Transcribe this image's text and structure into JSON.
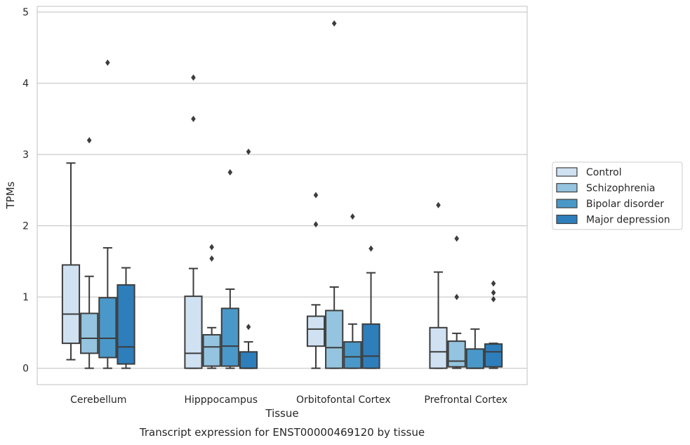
{
  "caption": "Transcript expression for ENST00000469120 by tissue",
  "chart_data": {
    "type": "box",
    "xlabel": "Tissue",
    "ylabel": "TPMs",
    "ylim": [
      -0.23,
      5.08
    ],
    "yticks": [
      0,
      1,
      2,
      3,
      4,
      5
    ],
    "grid": "horizontal",
    "legend_position": "right",
    "categories": [
      "Cerebellum",
      "Hipppocampus",
      "Orbitofontal Cortex",
      "Prefrontal Cortex"
    ],
    "series": [
      {
        "name": "Control",
        "color": "#d0e1f2",
        "boxes": [
          {
            "whislo": 0.12,
            "q1": 0.35,
            "med": 0.76,
            "q3": 1.45,
            "whishi": 2.88,
            "fliers": []
          },
          {
            "whislo": 0.0,
            "q1": 0.0,
            "med": 0.21,
            "q3": 1.01,
            "whishi": 1.4,
            "fliers": [
              3.5,
              4.08
            ]
          },
          {
            "whislo": 0.0,
            "q1": 0.31,
            "med": 0.55,
            "q3": 0.73,
            "whishi": 0.89,
            "fliers": [
              2.02,
              2.43
            ]
          },
          {
            "whislo": 0.0,
            "q1": 0.0,
            "med": 0.23,
            "q3": 0.57,
            "whishi": 1.35,
            "fliers": [
              2.29
            ]
          }
        ]
      },
      {
        "name": "Schizophrenia",
        "color": "#94c4df",
        "boxes": [
          {
            "whislo": 0.0,
            "q1": 0.21,
            "med": 0.42,
            "q3": 0.77,
            "whishi": 1.29,
            "fliers": [
              3.2
            ]
          },
          {
            "whislo": 0.0,
            "q1": 0.03,
            "med": 0.3,
            "q3": 0.47,
            "whishi": 0.57,
            "fliers": [
              1.54,
              1.7
            ]
          },
          {
            "whislo": 0.0,
            "q1": 0.0,
            "med": 0.29,
            "q3": 0.81,
            "whishi": 1.14,
            "fliers": [
              4.84
            ]
          },
          {
            "whislo": 0.0,
            "q1": 0.02,
            "med": 0.1,
            "q3": 0.38,
            "whishi": 0.49,
            "fliers": [
              1.0,
              1.82
            ]
          }
        ]
      },
      {
        "name": "Bipolar disorder",
        "color": "#4a98c9",
        "boxes": [
          {
            "whislo": 0.0,
            "q1": 0.15,
            "med": 0.42,
            "q3": 0.99,
            "whishi": 1.69,
            "fliers": [
              4.29
            ]
          },
          {
            "whislo": 0.0,
            "q1": 0.03,
            "med": 0.31,
            "q3": 0.84,
            "whishi": 1.11,
            "fliers": [
              2.75
            ]
          },
          {
            "whislo": 0.0,
            "q1": 0.0,
            "med": 0.16,
            "q3": 0.37,
            "whishi": 0.62,
            "fliers": [
              2.13
            ]
          },
          {
            "whislo": 0.0,
            "q1": 0.0,
            "med": 0.0,
            "q3": 0.27,
            "whishi": 0.55,
            "fliers": []
          }
        ]
      },
      {
        "name": "Major depression",
        "color": "#2e7ebc",
        "boxes": [
          {
            "whislo": 0.0,
            "q1": 0.06,
            "med": 0.3,
            "q3": 1.17,
            "whishi": 1.41,
            "fliers": []
          },
          {
            "whislo": 0.0,
            "q1": 0.0,
            "med": 0.0,
            "q3": 0.23,
            "whishi": 0.37,
            "fliers": [
              0.58,
              3.04
            ]
          },
          {
            "whislo": 0.0,
            "q1": 0.0,
            "med": 0.17,
            "q3": 0.62,
            "whishi": 1.34,
            "fliers": [
              1.68
            ]
          },
          {
            "whislo": 0.0,
            "q1": 0.02,
            "med": 0.23,
            "q3": 0.34,
            "whishi": 0.35,
            "fliers": [
              0.97,
              1.06,
              1.19
            ]
          }
        ]
      }
    ]
  }
}
